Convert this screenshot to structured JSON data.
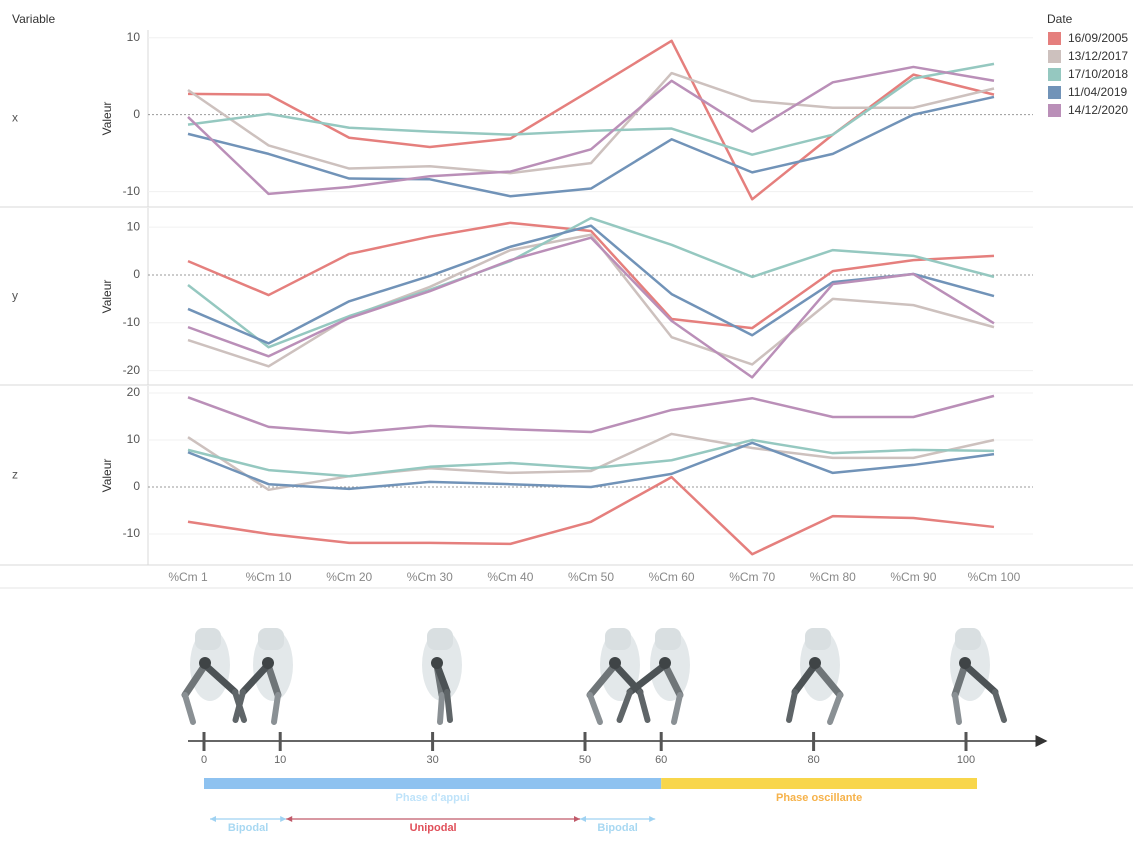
{
  "header": "Variable",
  "legend_title": "Date",
  "chart_data": [
    {
      "type": "line",
      "panel": "x",
      "ylabel": "Valeur",
      "categories": [
        "%Cm 1",
        "%Cm 10",
        "%Cm 20",
        "%Cm 30",
        "%Cm 40",
        "%Cm 50",
        "%Cm 60",
        "%Cm 70",
        "%Cm 80",
        "%Cm 90",
        "%Cm 100"
      ],
      "ylim": [
        -12,
        11
      ],
      "yticks": [
        -10,
        0,
        10
      ],
      "grid": true,
      "series": [
        {
          "name": "16/09/2005",
          "color": "#e57f7d",
          "values": [
            2.7,
            2.6,
            -3,
            -4.2,
            -3.1,
            3.2,
            9.6,
            -11,
            -2.6,
            5.2,
            2.6
          ]
        },
        {
          "name": "13/12/2017",
          "color": "#cdc1be",
          "values": [
            3.2,
            -4,
            -7,
            -6.7,
            -7.6,
            -6.3,
            5.4,
            1.8,
            0.9,
            0.9,
            3.4
          ]
        },
        {
          "name": "17/10/2018",
          "color": "#95c8c0",
          "values": [
            -1.3,
            0.1,
            -1.7,
            -2.2,
            -2.6,
            -2.1,
            -1.8,
            -5.2,
            -2.6,
            4.7,
            6.6
          ]
        },
        {
          "name": "11/04/2019",
          "color": "#7193b8",
          "values": [
            -2.5,
            -5.1,
            -8.3,
            -8.4,
            -10.6,
            -9.6,
            -3.2,
            -7.5,
            -5.1,
            0,
            2.3
          ]
        },
        {
          "name": "14/12/2020",
          "color": "#ba8fb8",
          "values": [
            -0.3,
            -10.3,
            -9.4,
            -8,
            -7.4,
            -4.5,
            4.4,
            -2.2,
            4.2,
            6.2,
            4.4
          ]
        }
      ]
    },
    {
      "type": "line",
      "panel": "y",
      "ylabel": "Valeur",
      "categories": [
        "%Cm 1",
        "%Cm 10",
        "%Cm 20",
        "%Cm 30",
        "%Cm 40",
        "%Cm 50",
        "%Cm 60",
        "%Cm 70",
        "%Cm 80",
        "%Cm 90",
        "%Cm 100"
      ],
      "ylim": [
        -23,
        14
      ],
      "yticks": [
        -20,
        -10,
        0,
        10
      ],
      "grid": true,
      "series": [
        {
          "name": "16/09/2005",
          "color": "#e57f7d",
          "values": [
            2.9,
            -4.2,
            4.4,
            8,
            10.9,
            9.2,
            -9.2,
            -11.1,
            0.8,
            3.1,
            4
          ]
        },
        {
          "name": "13/12/2017",
          "color": "#cdc1be",
          "values": [
            -13.6,
            -19.1,
            -8.8,
            -2.5,
            5.2,
            8.4,
            -13,
            -18.7,
            -5,
            -6.3,
            -10.9
          ]
        },
        {
          "name": "17/10/2018",
          "color": "#95c8c0",
          "values": [
            -2.1,
            -15.1,
            -8.6,
            -3.1,
            2.9,
            11.9,
            6.3,
            -0.4,
            5.2,
            4,
            -0.4
          ]
        },
        {
          "name": "11/04/2019",
          "color": "#7193b8",
          "values": [
            -7.1,
            -14.3,
            -5.5,
            -0.2,
            5.9,
            10.3,
            -4,
            -12.6,
            -1.5,
            0.2,
            -4.4
          ]
        },
        {
          "name": "14/12/2020",
          "color": "#ba8fb8",
          "values": [
            -10.9,
            -17,
            -9,
            -3.4,
            3.1,
            7.8,
            -9.6,
            -21.4,
            -1.9,
            0.2,
            -10.1
          ]
        }
      ]
    },
    {
      "type": "line",
      "panel": "z",
      "ylabel": "Valeur",
      "categories": [
        "%Cm 1",
        "%Cm 10",
        "%Cm 20",
        "%Cm 30",
        "%Cm 40",
        "%Cm 50",
        "%Cm 60",
        "%Cm 70",
        "%Cm 80",
        "%Cm 90",
        "%Cm 100"
      ],
      "ylim": [
        -16.6,
        21.5
      ],
      "yticks": [
        -10,
        0,
        10,
        20
      ],
      "grid": true,
      "series": [
        {
          "name": "16/09/2005",
          "color": "#e57f7d",
          "values": [
            -7.4,
            -10,
            -11.9,
            -11.9,
            -12.1,
            -7.4,
            2.1,
            -14.3,
            -6.2,
            -6.6,
            -8.5
          ]
        },
        {
          "name": "13/12/2017",
          "color": "#cdc1be",
          "values": [
            10.6,
            -0.6,
            2.3,
            4,
            3,
            3.4,
            11.3,
            8.3,
            6.2,
            6.2,
            10
          ]
        },
        {
          "name": "17/10/2018",
          "color": "#95c8c0",
          "values": [
            7.9,
            3.6,
            2.3,
            4.3,
            5.1,
            4,
            5.7,
            10,
            7.2,
            7.9,
            7.7
          ]
        },
        {
          "name": "11/04/2019",
          "color": "#7193b8",
          "values": [
            7.4,
            0.6,
            -0.4,
            1.1,
            0.6,
            0,
            2.8,
            9.4,
            3,
            4.7,
            7
          ]
        },
        {
          "name": "14/12/2020",
          "color": "#ba8fb8",
          "values": [
            19.1,
            12.8,
            11.5,
            13,
            12.3,
            11.7,
            16.4,
            18.9,
            14.9,
            14.9,
            19.4
          ]
        }
      ]
    }
  ],
  "gait": {
    "timeline": [
      0,
      10,
      30,
      50,
      60,
      80,
      100
    ],
    "phases": [
      "Phase d'appui",
      "Phase oscillante"
    ],
    "supports": [
      "Bipodal",
      "Unipodal",
      "Bipodal"
    ]
  }
}
